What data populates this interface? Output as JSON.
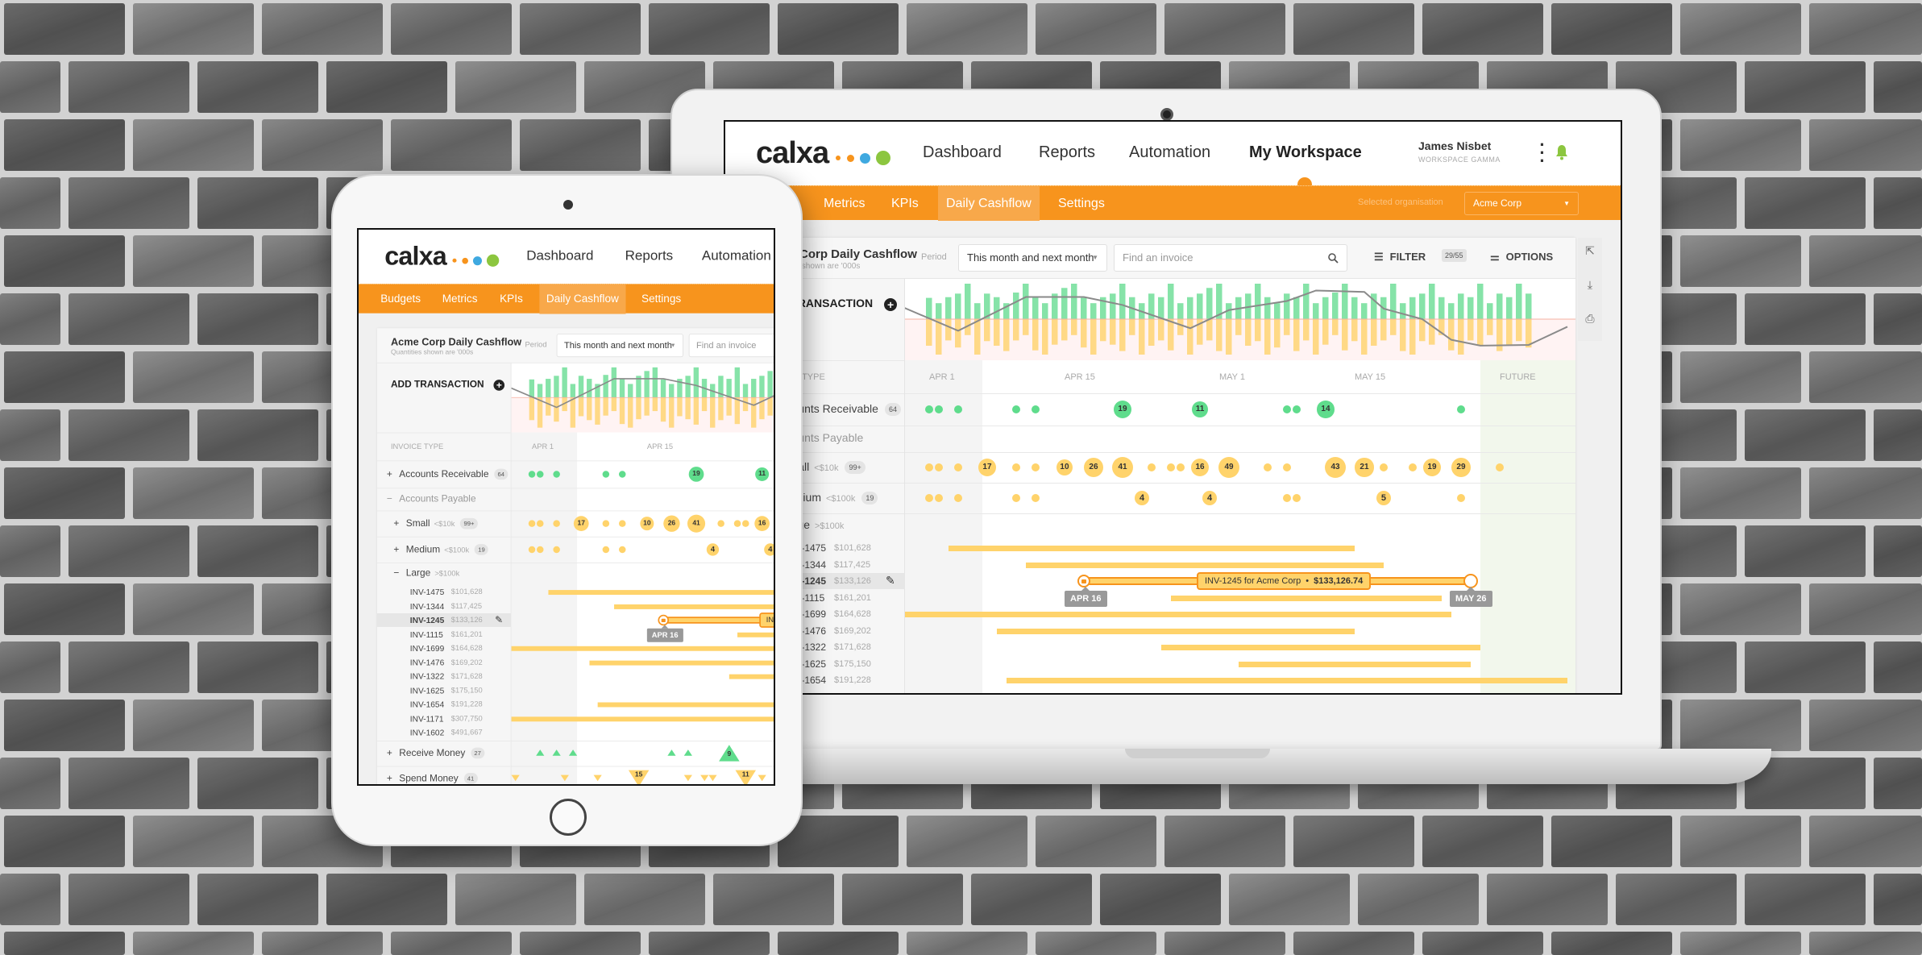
{
  "app": {
    "brand": "calxa",
    "brand_dot_colors": [
      "#f7941d",
      "#f7941d",
      "#3fa9e0",
      "#8cc63f"
    ],
    "nav": [
      "Dashboard",
      "Reports",
      "Automation",
      "My Workspace"
    ],
    "active_nav": "My Workspace",
    "user": {
      "name": "James Nisbet",
      "workspace": "WORKSPACE GAMMA"
    },
    "subnav": [
      "Budgets",
      "Metrics",
      "KPIs",
      "Daily Cashflow",
      "Settings"
    ],
    "active_subnav": "Daily Cashflow",
    "org_label": "Selected organisation",
    "org_value": "Acme Corp"
  },
  "panel": {
    "title": "Acme Corp Daily Cashflow",
    "subtitle": "Quantities shown are '000s",
    "period_label": "Period",
    "period_value": "This month and next month",
    "search_placeholder": "Find an invoice",
    "filter_label": "FILTER",
    "filter_count": "29/55",
    "options_label": "OPTIONS",
    "add_transaction": "ADD TRANSACTION",
    "side_tools": [
      "share-icon",
      "download-icon",
      "print-icon"
    ]
  },
  "chart": {
    "type": "bar",
    "start_date": "Mar 31",
    "inflow": [
      60,
      45,
      62,
      72,
      100,
      45,
      72,
      62,
      45,
      75,
      100,
      62,
      45,
      72,
      88,
      100,
      60,
      45,
      62,
      72,
      100,
      62,
      45,
      72,
      62,
      100,
      45,
      62,
      72,
      88,
      100,
      45,
      62,
      72,
      100,
      62,
      45,
      72,
      62,
      100,
      45,
      62,
      75,
      100,
      62,
      45,
      72,
      62,
      100,
      45,
      62,
      72,
      100,
      62,
      45,
      72,
      62,
      100,
      45,
      72,
      62,
      100,
      72
    ],
    "outflow": [
      75,
      100,
      60,
      80,
      45,
      100,
      62,
      75,
      90,
      60,
      45,
      88,
      100,
      72,
      60,
      45,
      80,
      100,
      62,
      72,
      90,
      45,
      100,
      75,
      60,
      88,
      45,
      100,
      72,
      60,
      90,
      100,
      45,
      75,
      62,
      100,
      80,
      45,
      90,
      60,
      100,
      72,
      45,
      88,
      62,
      100,
      75,
      60,
      45,
      90,
      100,
      62,
      72,
      45,
      88,
      100,
      60,
      75,
      45,
      90,
      72,
      62,
      80
    ],
    "balance": [
      {
        "date": "Mar 28",
        "value": 36
      },
      {
        "date": "Apr 3",
        "value": -32
      },
      {
        "date": "Apr 10",
        "value": 61
      },
      {
        "date": "Apr 16",
        "value": 61
      },
      {
        "date": "Apr 20",
        "value": 39
      },
      {
        "date": "Apr 27",
        "value": -25
      },
      {
        "date": "May 1",
        "value": 25
      },
      {
        "date": "May 7",
        "value": 50
      },
      {
        "date": "May 10",
        "value": 79
      },
      {
        "date": "May 15",
        "value": 75
      },
      {
        "date": "May 17",
        "value": 29
      },
      {
        "date": "May 21",
        "value": 0
      },
      {
        "date": "May 24",
        "value": -57
      },
      {
        "date": "May 27",
        "value": -73
      },
      {
        "date": "Jun 1",
        "value": -71
      },
      {
        "date": "Jun 5",
        "value": -21
      }
    ],
    "colors": {
      "inflow": "#86e3a8",
      "outflow": "#ffd986",
      "balance": "#8a8a8a"
    }
  },
  "timeline": {
    "axis_header": "INVOICE TYPE",
    "date_labels": [
      {
        "label": "APR 1",
        "date": "Apr 1"
      },
      {
        "label": "APR 15",
        "date": "Apr 15"
      },
      {
        "label": "MAY 1",
        "date": "May 1"
      },
      {
        "label": "MAY 15",
        "date": "May 15"
      }
    ],
    "future_label": "FUTURE",
    "future_start": "May 27",
    "today": "Apr 5"
  },
  "rows": {
    "receivable": {
      "label": "Accounts Receivable",
      "count": "64",
      "toggle": "+",
      "events": [
        {
          "date": "Mar 31"
        },
        {
          "date": "Apr 1"
        },
        {
          "date": "Apr 3"
        },
        {
          "date": "Apr 9"
        },
        {
          "date": "Apr 11"
        },
        {
          "date": "Apr 20",
          "n": "19"
        },
        {
          "date": "Apr 28",
          "n": "11"
        },
        {
          "date": "May 7"
        },
        {
          "date": "May 8"
        },
        {
          "date": "May 11",
          "n": "14"
        },
        {
          "date": "May 25"
        }
      ]
    },
    "payable": {
      "label": "Accounts Payable",
      "toggle": "−"
    },
    "small": {
      "label": "Small",
      "limit": "<$10k",
      "count": "99+",
      "toggle": "+",
      "events": [
        {
          "date": "Mar 31"
        },
        {
          "date": "Apr 1"
        },
        {
          "date": "Apr 3"
        },
        {
          "date": "Apr 6",
          "n": "17"
        },
        {
          "date": "Apr 9"
        },
        {
          "date": "Apr 11"
        },
        {
          "date": "Apr 14",
          "n": "10"
        },
        {
          "date": "Apr 17",
          "n": "26"
        },
        {
          "date": "Apr 20",
          "n": "41"
        },
        {
          "date": "Apr 23"
        },
        {
          "date": "Apr 25"
        },
        {
          "date": "Apr 26"
        },
        {
          "date": "Apr 28",
          "n": "16"
        },
        {
          "date": "May 1",
          "n": "49"
        },
        {
          "date": "May 5"
        },
        {
          "date": "May 7"
        },
        {
          "date": "May 12",
          "n": "43"
        },
        {
          "date": "May 15",
          "n": "21"
        },
        {
          "date": "May 17"
        },
        {
          "date": "May 20"
        },
        {
          "date": "May 22",
          "n": "19"
        },
        {
          "date": "May 25",
          "n": "29"
        },
        {
          "date": "May 29"
        }
      ]
    },
    "medium": {
      "label": "Medium",
      "limit": "<$100k",
      "count": "19",
      "toggle": "+",
      "events": [
        {
          "date": "Mar 31"
        },
        {
          "date": "Apr 1"
        },
        {
          "date": "Apr 3"
        },
        {
          "date": "Apr 9"
        },
        {
          "date": "Apr 11"
        },
        {
          "date": "Apr 22",
          "n": "4"
        },
        {
          "date": "Apr 29",
          "n": "4"
        },
        {
          "date": "May 7"
        },
        {
          "date": "May 8"
        },
        {
          "date": "May 17",
          "n": "5"
        },
        {
          "date": "May 25"
        }
      ]
    },
    "large": {
      "label": "Large",
      "limit": ">$100k",
      "toggle": "−",
      "invoices": [
        {
          "id": "INV-1475",
          "amount": "$101,628",
          "start": "Apr 2",
          "end": "May 14"
        },
        {
          "id": "INV-1344",
          "amount": "$117,425",
          "start": "Apr 10",
          "end": "May 17"
        },
        {
          "id": "INV-1245",
          "amount": "$133,126",
          "start": "Apr 16",
          "end": "May 26",
          "selected": true
        },
        {
          "id": "INV-1115",
          "amount": "$161,201",
          "start": "Apr 25",
          "end": "May 23"
        },
        {
          "id": "INV-1699",
          "amount": "$164,628",
          "start": "Mar 28",
          "end": "May 24"
        },
        {
          "id": "INV-1476",
          "amount": "$169,202",
          "start": "Apr 7",
          "end": "May 14"
        },
        {
          "id": "INV-1322",
          "amount": "$171,628",
          "start": "Apr 24",
          "end": "May 27"
        },
        {
          "id": "INV-1625",
          "amount": "$175,150",
          "start": "May 2",
          "end": "May 26"
        },
        {
          "id": "INV-1654",
          "amount": "$191,228",
          "start": "Apr 8",
          "end": "Jun 5"
        },
        {
          "id": "INV-1171",
          "amount": "$307,750",
          "start": "Mar 28",
          "end": "May 6"
        },
        {
          "id": "INV-1602",
          "amount": "$491,667",
          "start": "Apr 30",
          "end": "Jun 5"
        }
      ]
    },
    "receive_money": {
      "label": "Receive Money",
      "count": "27",
      "toggle": "+",
      "events": [
        {
          "date": "Apr 1"
        },
        {
          "date": "Apr 3"
        },
        {
          "date": "Apr 5"
        },
        {
          "date": "Apr 17"
        },
        {
          "date": "Apr 19"
        },
        {
          "date": "Apr 24",
          "n": "9"
        }
      ]
    },
    "spend_money": {
      "label": "Spend Money",
      "count": "41",
      "toggle": "+",
      "events": [
        {
          "date": "Mar 29"
        },
        {
          "date": "Apr 4"
        },
        {
          "date": "Apr 8"
        },
        {
          "date": "Apr 13",
          "n": "15"
        },
        {
          "date": "Apr 19"
        },
        {
          "date": "Apr 21"
        },
        {
          "date": "Apr 22"
        },
        {
          "date": "Apr 26",
          "n": "11"
        },
        {
          "date": "Apr 28"
        }
      ]
    }
  },
  "selection": {
    "label": "INV-1245 for Acme Corp",
    "separator": "•",
    "amount": "$133,126.74",
    "start_tag": "APR 16",
    "end_tag": "MAY 26"
  },
  "colors": {
    "accent": "#f7941d",
    "inflow": "#5fdc8c",
    "outflow": "#ffd36b",
    "selection": "#f7941d"
  }
}
